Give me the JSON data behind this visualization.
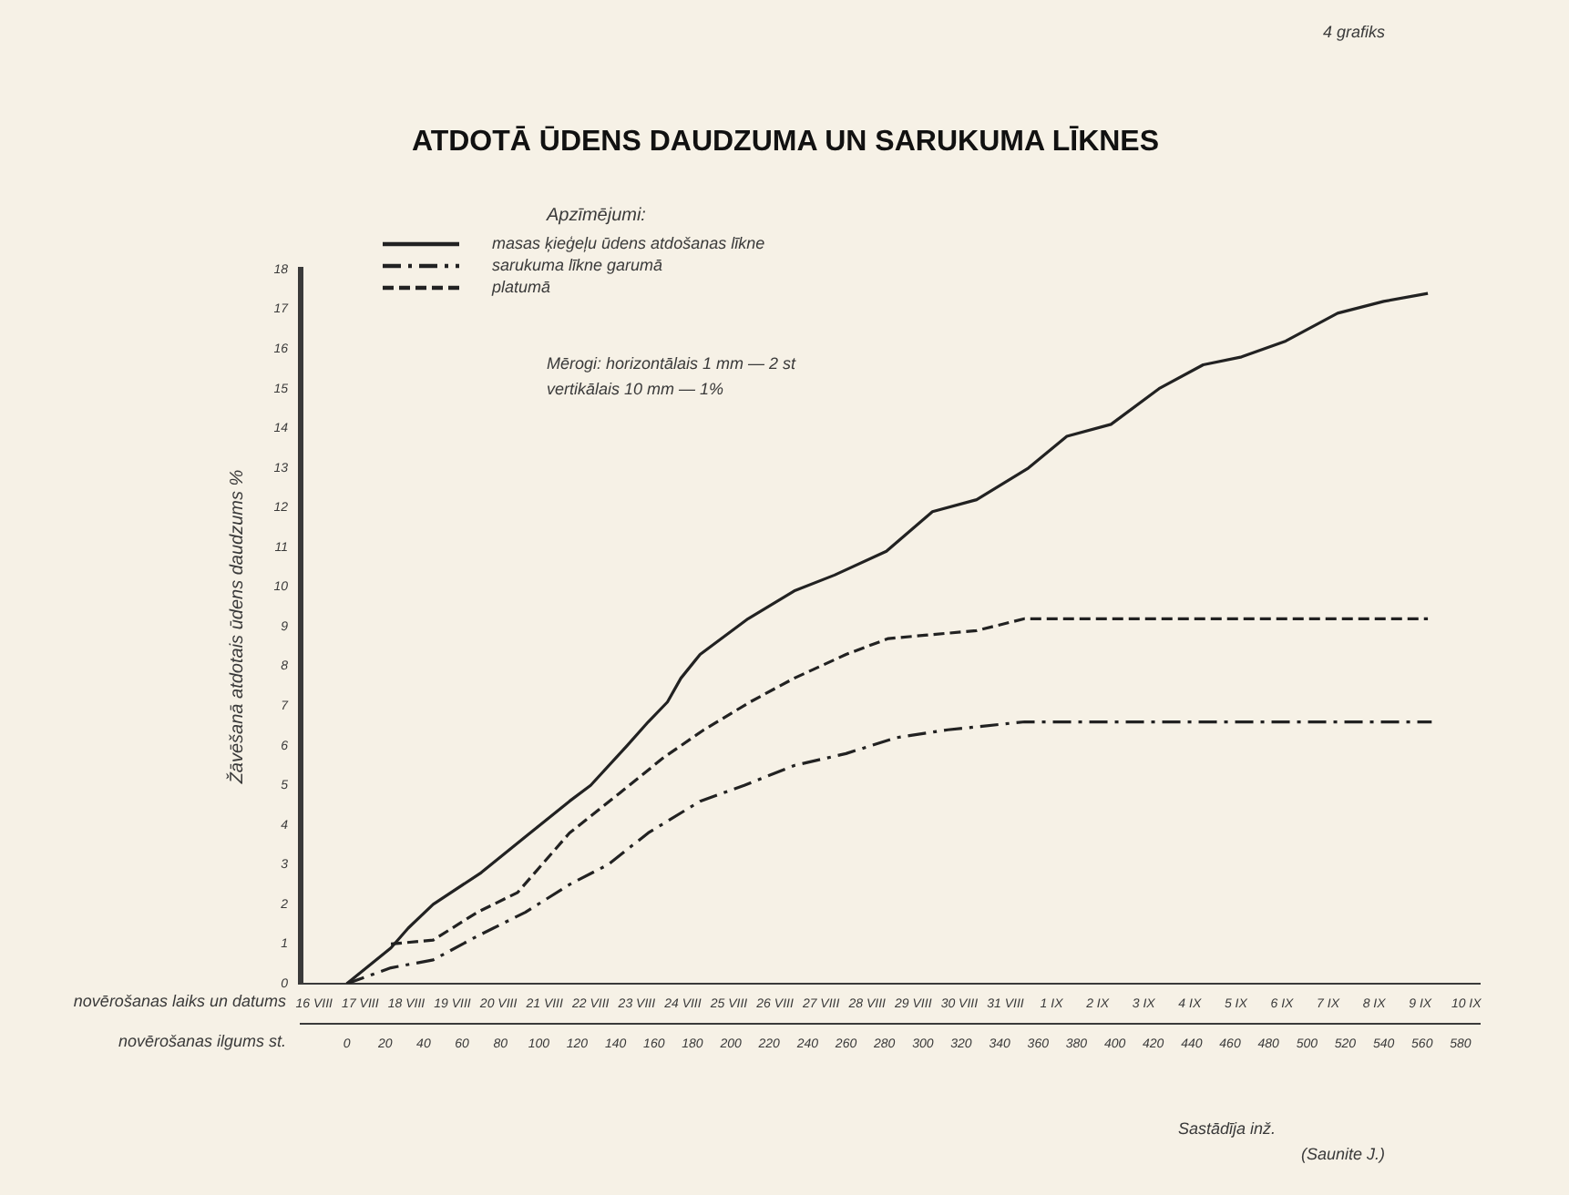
{
  "chart_data": {
    "type": "line",
    "title": "ATDOTĀ ŪDENS DAUDZUMA UN SARUKUMA LĪKNES",
    "xlabel": "novērošanas ilgums st.",
    "x2label": "novērošanas laiks un datums",
    "ylabel": "Žāvēšanā atdotais ūdens daudzums %",
    "legend_title": "Apzīmējumi:",
    "legend": "top left",
    "marker": "none",
    "grid": false,
    "xlim": [
      -24,
      590
    ],
    "ylim": [
      0,
      18
    ],
    "xticks": [
      0,
      20,
      40,
      60,
      80,
      100,
      120,
      140,
      160,
      180,
      200,
      220,
      240,
      260,
      280,
      300,
      320,
      340,
      360,
      380,
      400,
      420,
      440,
      460,
      480,
      500,
      520,
      540,
      560,
      580
    ],
    "yticks": [
      0,
      1,
      2,
      3,
      4,
      5,
      6,
      7,
      8,
      9,
      10,
      11,
      12,
      13,
      14,
      15,
      16,
      17,
      18
    ],
    "x2lim": [
      "--08-15T17:00",
      "--09-10T07:00"
    ],
    "x2ticks": [
      {
        "value": "--08-16",
        "label": "16 VIII"
      },
      {
        "value": "--08-17",
        "label": "17 VIII"
      },
      {
        "value": "--08-18",
        "label": "18 VIII"
      },
      {
        "value": "--08-19",
        "label": "19 VIII"
      },
      {
        "value": "--08-20",
        "label": "20 VIII"
      },
      {
        "value": "--08-21",
        "label": "21 VIII"
      },
      {
        "value": "--08-22",
        "label": "22 VIII"
      },
      {
        "value": "--08-23",
        "label": "23 VIII"
      },
      {
        "value": "--08-24",
        "label": "24 VIII"
      },
      {
        "value": "--08-25",
        "label": "25 VIII"
      },
      {
        "value": "--08-26",
        "label": "26 VIII"
      },
      {
        "value": "--08-27",
        "label": "27 VIII"
      },
      {
        "value": "--08-28",
        "label": "28 VIII"
      },
      {
        "value": "--08-29",
        "label": "29 VIII"
      },
      {
        "value": "--08-30",
        "label": "30 VIII"
      },
      {
        "value": "--08-31",
        "label": "31 VIII"
      },
      {
        "value": "--09-01",
        "label": "1 IX"
      },
      {
        "value": "--09-02",
        "label": "2 IX"
      },
      {
        "value": "--09-03",
        "label": "3 IX"
      },
      {
        "value": "--09-04",
        "label": "4 IX"
      },
      {
        "value": "--09-05",
        "label": "5 IX"
      },
      {
        "value": "--09-06",
        "label": "6 IX"
      },
      {
        "value": "--09-07",
        "label": "7 IX"
      },
      {
        "value": "--09-08",
        "label": "8 IX"
      },
      {
        "value": "--09-09",
        "label": "9 IX"
      },
      {
        "value": "--09-10",
        "label": "10 IX"
      }
    ],
    "annotations": [
      "4 grafiks",
      "Mērogi: horizontālais 1 mm — 2 st",
      "vertikālais 10 mm — 1%",
      "Sastādīja inž.",
      "(Saunite J.)"
    ],
    "series": [
      {
        "name": "masas ķieģeļu ūdens atdošanas līkne",
        "color": "#222222",
        "line_style": "solid",
        "x": [
          0,
          23,
          32,
          45,
          70,
          93,
          116,
          127,
          146,
          157,
          167,
          174,
          184,
          209,
          233,
          254,
          281,
          305,
          328,
          355,
          375,
          398,
          423,
          446,
          466,
          489,
          516,
          540,
          563
        ],
        "values": [
          0,
          0.9,
          1.4,
          2.0,
          2.8,
          3.7,
          4.6,
          5.0,
          6.0,
          6.6,
          7.1,
          7.7,
          8.3,
          9.2,
          9.9,
          10.3,
          10.9,
          11.9,
          12.2,
          13.0,
          13.8,
          14.1,
          15.0,
          15.6,
          15.8,
          16.2,
          16.9,
          17.2,
          17.4
        ]
      },
      {
        "name": "sarukuma līkne garumā",
        "color": "#222222",
        "line_style": "dashdot",
        "x": [
          0,
          23,
          45,
          68,
          93,
          116,
          136,
          157,
          184,
          207,
          233,
          260,
          286,
          313,
          353,
          565
        ],
        "values": [
          0,
          0.4,
          0.6,
          1.2,
          1.8,
          2.5,
          3.0,
          3.8,
          4.6,
          5.0,
          5.5,
          5.8,
          6.2,
          6.4,
          6.6,
          6.6
        ]
      },
      {
        "name": "platumā",
        "color": "#222222",
        "line_style": "dashed",
        "x": [
          23,
          45,
          68,
          89,
          116,
          142,
          165,
          186,
          210,
          233,
          260,
          282,
          305,
          328,
          353,
          563
        ],
        "values": [
          1.0,
          1.1,
          1.8,
          2.3,
          3.8,
          4.8,
          5.7,
          6.4,
          7.1,
          7.7,
          8.3,
          8.7,
          8.8,
          8.9,
          9.2,
          9.2
        ]
      }
    ]
  }
}
